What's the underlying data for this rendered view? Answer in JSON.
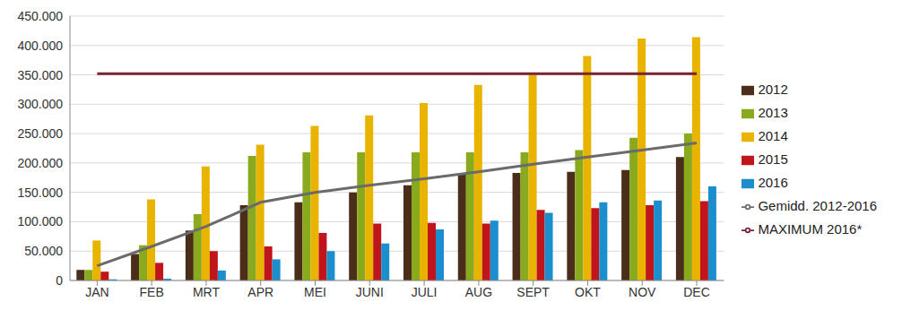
{
  "chart_data": {
    "type": "bar",
    "categories": [
      "JAN",
      "FEB",
      "MRT",
      "APR",
      "MEI",
      "JUNI",
      "JULI",
      "AUG",
      "SEPT",
      "OKT",
      "NOV",
      "DEC"
    ],
    "series": [
      {
        "name": "2012",
        "type": "bar",
        "color": "#4a2e1a",
        "values": [
          18000,
          45000,
          85000,
          128000,
          133000,
          150000,
          162000,
          180000,
          183000,
          185000,
          188000,
          210000
        ]
      },
      {
        "name": "2013",
        "type": "bar",
        "color": "#8aaa1e",
        "values": [
          18000,
          60000,
          113000,
          212000,
          218000,
          218000,
          218000,
          218000,
          218000,
          222000,
          243000,
          250000
        ]
      },
      {
        "name": "2014",
        "type": "bar",
        "color": "#e8b400",
        "values": [
          68000,
          138000,
          194000,
          231000,
          263000,
          281000,
          302000,
          333000,
          350000,
          382000,
          412000,
          414000
        ]
      },
      {
        "name": "2015",
        "type": "bar",
        "color": "#c0161b",
        "values": [
          15000,
          30000,
          50000,
          58000,
          81000,
          97000,
          98000,
          97000,
          120000,
          123000,
          128000,
          135000
        ]
      },
      {
        "name": "2016",
        "type": "bar",
        "color": "#1b8fcd",
        "values": [
          2000,
          3000,
          17000,
          36000,
          50000,
          63000,
          87000,
          102000,
          115000,
          133000,
          136000,
          160000
        ]
      },
      {
        "name": "MAXIMUM 2016*",
        "type": "line",
        "color": "#7b2431",
        "values": [
          352000,
          352000,
          352000,
          352000,
          352000,
          352000,
          352000,
          352000,
          352000,
          352000,
          352000,
          352000
        ]
      },
      {
        "name": "Gemidd. 2012-2016",
        "type": "line",
        "color": "#6b6b6b",
        "values": [
          25000,
          58000,
          92000,
          133000,
          150000,
          162000,
          173000,
          185000,
          198000,
          210000,
          222000,
          234000
        ]
      }
    ],
    "ylim": [
      0,
      450000
    ],
    "yticks": [
      0,
      {
        "value": 50000,
        "label": "50.000"
      },
      {
        "value": 100000,
        "label": "100.000"
      },
      {
        "value": 150000,
        "label": "150.000"
      },
      {
        "value": 200000,
        "label": "200.000"
      },
      {
        "value": 250000,
        "label": "250.000"
      },
      {
        "value": 300000,
        "label": "300.000"
      },
      {
        "value": 350000,
        "label": "350.000"
      },
      {
        "value": 400000,
        "label": "400.000"
      },
      {
        "value": 450000,
        "label": "450.000"
      }
    ],
    "grid": true,
    "legend": "right"
  }
}
